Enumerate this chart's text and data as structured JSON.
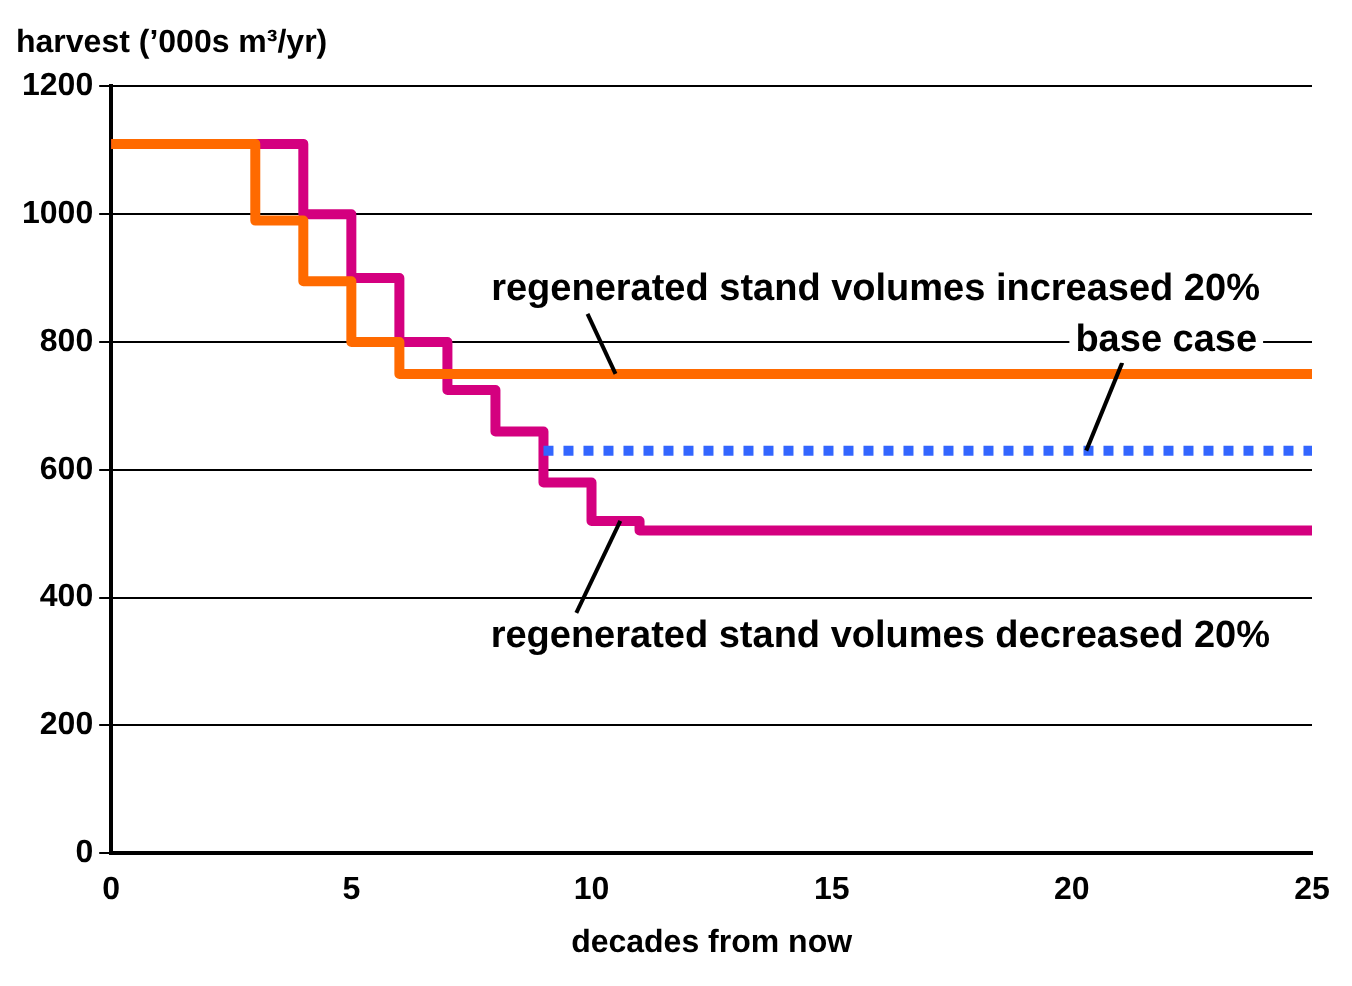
{
  "chart_data": {
    "type": "step",
    "ylabel": "harvest (’000s m³/yr)",
    "xlabel": "decades from now",
    "series": [
      {
        "name": "regenerated stand volumes increased 20%",
        "color": "#ff6a00",
        "x": [
          0,
          3,
          4,
          5,
          6,
          25
        ],
        "values": [
          1110,
          990,
          895,
          800,
          750,
          750
        ]
      },
      {
        "name": "base case",
        "color": "#3366ff",
        "line_style": "dotted",
        "x": [
          9,
          25
        ],
        "values": [
          630,
          630
        ]
      },
      {
        "name": "regenerated stand volumes decreased 20%",
        "color": "#d4007f",
        "x": [
          0,
          4,
          5,
          6,
          7,
          8,
          9,
          10,
          11,
          25
        ],
        "values": [
          1110,
          1000,
          900,
          800,
          725,
          660,
          580,
          520,
          505,
          505
        ]
      }
    ],
    "xlim": [
      0,
      25
    ],
    "xticks": [
      0,
      5,
      10,
      15,
      20,
      25
    ],
    "ylim": [
      0,
      1200
    ],
    "yticks": [
      0,
      200,
      400,
      600,
      800,
      1000,
      1200
    ],
    "grid": "y",
    "legend": false,
    "marker": "none",
    "line_style": "solid"
  }
}
